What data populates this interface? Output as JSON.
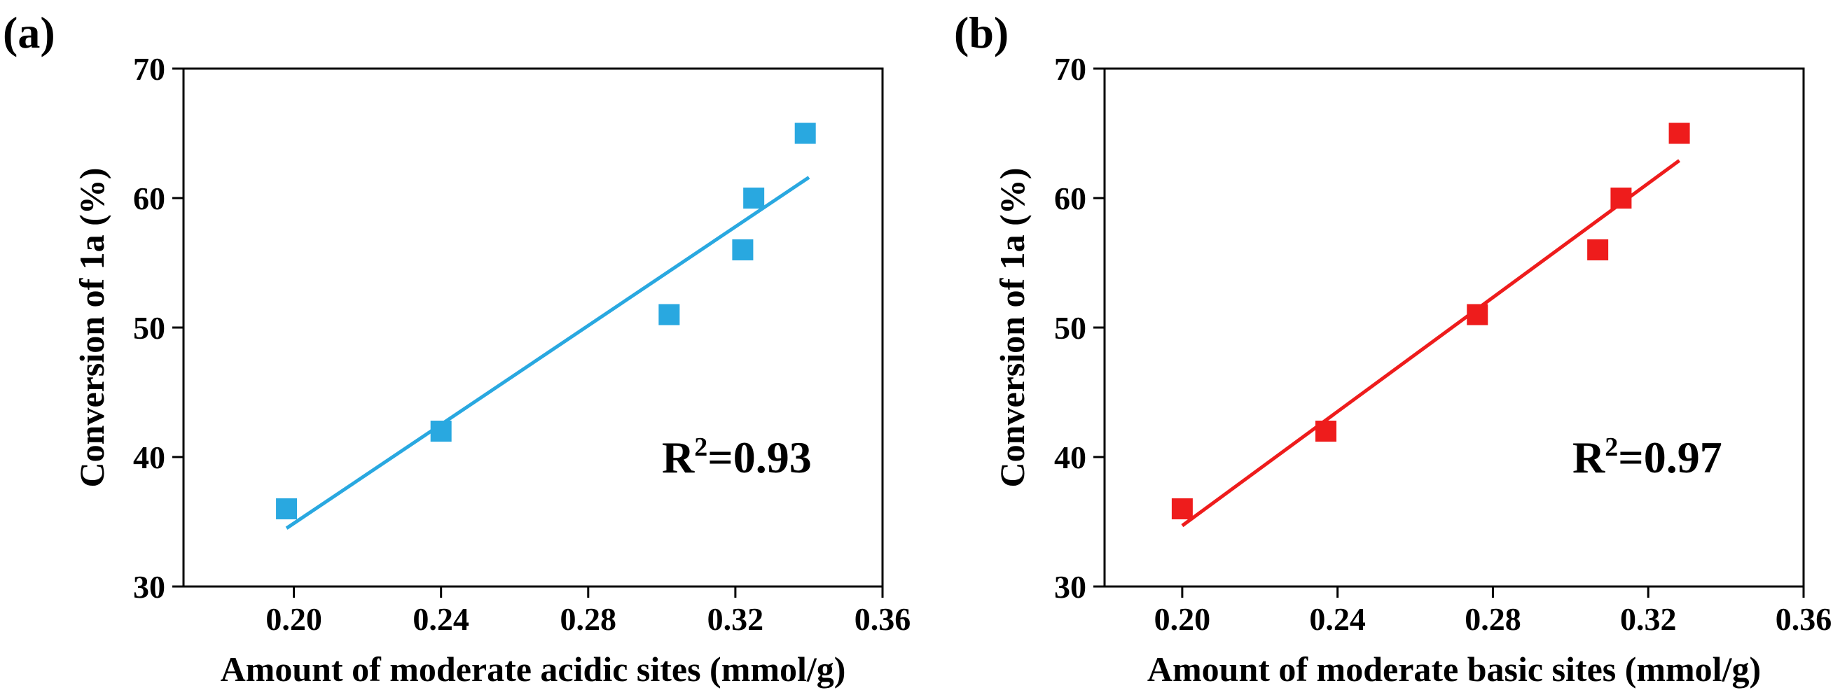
{
  "chart_data": [
    {
      "type": "scatter",
      "panel_label": "(a)",
      "xlabel": "Amount of moderate acidic sites (mmol/g)",
      "ylabel": "Conversion of 1a (%)",
      "xlim": [
        0.17,
        0.36
      ],
      "ylim": [
        30,
        70
      ],
      "xticks": [
        0.2,
        0.24,
        0.28,
        0.32,
        0.36
      ],
      "xtick_labels": [
        "0.20",
        "0.24",
        "0.28",
        "0.32",
        "0.36"
      ],
      "yticks": [
        30,
        40,
        50,
        60,
        70
      ],
      "ytick_labels": [
        "30",
        "40",
        "50",
        "60",
        "70"
      ],
      "color": "#29a8e0",
      "marker": "square",
      "points": [
        {
          "x": 0.198,
          "y": 36
        },
        {
          "x": 0.24,
          "y": 42
        },
        {
          "x": 0.302,
          "y": 51
        },
        {
          "x": 0.322,
          "y": 56
        },
        {
          "x": 0.325,
          "y": 60
        },
        {
          "x": 0.339,
          "y": 65
        }
      ],
      "fit_line": {
        "x": [
          0.198,
          0.34
        ],
        "y": [
          34.5,
          61.6
        ]
      },
      "annotation": {
        "base": "R",
        "sup": "2",
        "rest": "=0.93"
      }
    },
    {
      "type": "scatter",
      "panel_label": "(b)",
      "xlabel": "Amount of moderate basic sites (mmol/g)",
      "ylabel": "Conversion of 1a (%)",
      "xlim": [
        0.18,
        0.36
      ],
      "ylim": [
        30,
        70
      ],
      "xticks": [
        0.2,
        0.24,
        0.28,
        0.32,
        0.36
      ],
      "xtick_labels": [
        "0.20",
        "0.24",
        "0.28",
        "0.32",
        "0.36"
      ],
      "yticks": [
        30,
        40,
        50,
        60,
        70
      ],
      "ytick_labels": [
        "30",
        "40",
        "50",
        "60",
        "70"
      ],
      "color": "#ee1c1c",
      "marker": "square",
      "points": [
        {
          "x": 0.2,
          "y": 36
        },
        {
          "x": 0.237,
          "y": 42
        },
        {
          "x": 0.276,
          "y": 51
        },
        {
          "x": 0.307,
          "y": 56
        },
        {
          "x": 0.313,
          "y": 60
        },
        {
          "x": 0.328,
          "y": 65
        }
      ],
      "fit_line": {
        "x": [
          0.2,
          0.328
        ],
        "y": [
          34.7,
          62.9
        ]
      },
      "annotation": {
        "base": "R",
        "sup": "2",
        "rest": "=0.97"
      }
    }
  ]
}
